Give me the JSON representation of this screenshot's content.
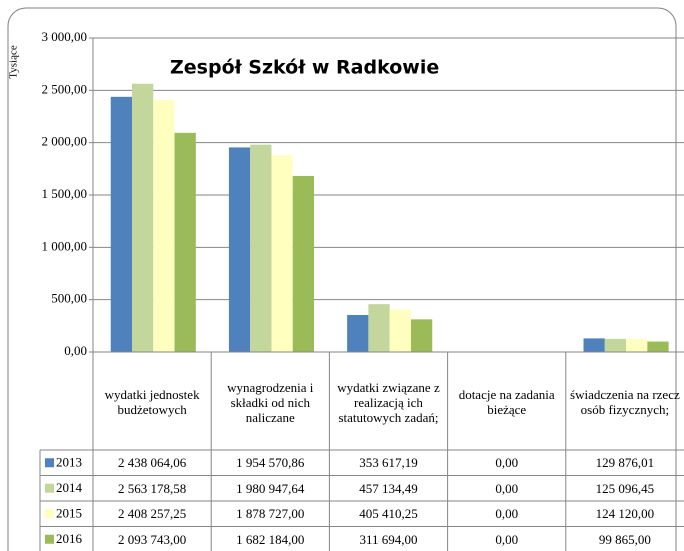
{
  "chart_data": {
    "type": "bar",
    "title": "Zespół Szkół w Radkowie",
    "y_axis_label": "Tysiące",
    "categories": [
      "wydatki jednostek budżetowych",
      "wynagrodzenia i składki od nich naliczane",
      "wydatki związane z realizacją ich statutowych zadań;",
      "dotacje na zadania bieżące",
      "świadczenia na rzecz osób fizycznych;"
    ],
    "series": [
      {
        "name": "2013",
        "color": "#4f81bd",
        "values": [
          2438.06406,
          1954.57086,
          353.61719,
          0,
          129.87601
        ],
        "value_labels": [
          "2 438 064,06",
          "1 954 570,86",
          "353 617,19",
          "0,00",
          "129 876,01"
        ]
      },
      {
        "name": "2014",
        "color": "#c3d69b",
        "values": [
          2563.17858,
          1980.94764,
          457.13449,
          0,
          125.09645
        ],
        "value_labels": [
          "2 563 178,58",
          "1 980 947,64",
          "457 134,49",
          "0,00",
          "125 096,45"
        ]
      },
      {
        "name": "2015",
        "color": "#ffffc0",
        "values": [
          2408.25725,
          1878.727,
          405.41025,
          0,
          124.12
        ],
        "value_labels": [
          "2 408 257,25",
          "1 878 727,00",
          "405 410,25",
          "0,00",
          "124 120,00"
        ]
      },
      {
        "name": "2016",
        "color": "#9bbb59",
        "values": [
          2093.743,
          1682.184,
          311.694,
          0,
          99.865
        ],
        "value_labels": [
          "2 093 743,00",
          "1 682 184,00",
          "311 694,00",
          "0,00",
          "99 865,00"
        ]
      }
    ],
    "ylim": [
      0,
      3000
    ],
    "yticks": [
      {
        "value": 0,
        "label": "0,00"
      },
      {
        "value": 500,
        "label": "500,00"
      },
      {
        "value": 1000,
        "label": "1 000,00"
      },
      {
        "value": 1500,
        "label": "1 500,00"
      },
      {
        "value": 2000,
        "label": "2 000,00"
      },
      {
        "value": 2500,
        "label": "2 500,00"
      },
      {
        "value": 3000,
        "label": "3 000,00"
      }
    ],
    "grid": true
  }
}
